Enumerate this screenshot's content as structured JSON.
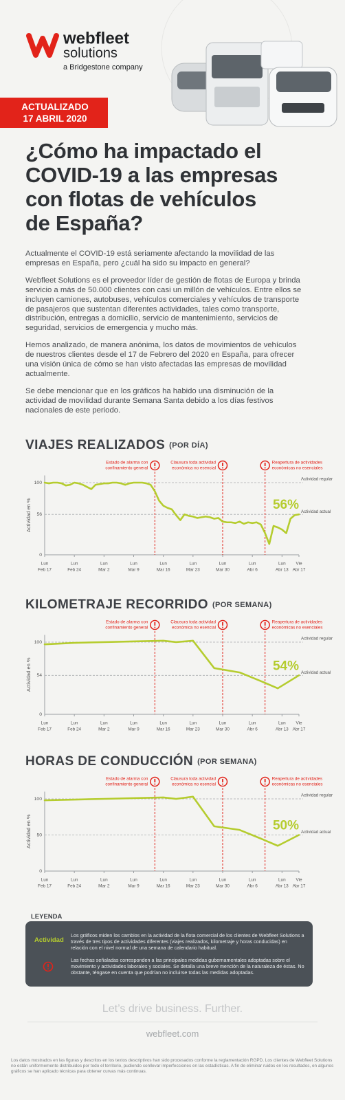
{
  "header": {
    "brand": "webfleet",
    "brand_sub": "solutions",
    "tagline": "a Bridgestone company",
    "badge": [
      "ACTUALIZADO",
      "17 ABRIL 2020"
    ],
    "title": [
      "¿Cómo ha impactado el",
      "COVID-19 a las empresas",
      "con flotas de vehículos",
      "de España?"
    ]
  },
  "paragraphs": [
    "Actualmente el COVID-19 está seriamente afectando la movilidad de las empresas en España, pero ¿cuál ha sido su impacto en general?",
    "Webfleet Solutions es el proveedor líder de gestión de flotas de Europa y brinda servicio a más de 50.000 clientes con casi un millón de vehículos. Entre ellos se incluyen camiones, autobuses, vehículos comerciales y vehículos de transporte de pasajeros que sustentan diferentes actividades, tales como transporte, distribución, entregas a domicilio, servicio de mantenimiento, servicios de seguridad, servicios de emergencia y mucho más.",
    "Hemos analizado, de manera anónima, los datos de movimientos de vehículos de nuestros clientes desde el 17 de Febrero del 2020 en España, para ofrecer una visión única de cómo se han visto afectadas las empresas de movilidad actualmente.",
    "Se debe mencionar que en los gráficos ha habido una disminución de la actividad de movilidad durante Semana Santa debido a los días festivos nacionales de este periodo."
  ],
  "chart_data": [
    {
      "type": "line",
      "title": "VIAJES REALIZADOS",
      "subtitle": "(POR DÍA)",
      "y_label": "Actividad en %",
      "reference_label": "Actividad regular",
      "xlim": [
        0,
        60
      ],
      "ylim": [
        0,
        110
      ],
      "yticks": [
        0,
        56,
        100
      ],
      "xticks": [
        {
          "value": 0,
          "label": "Feb 17",
          "day": "Lun"
        },
        {
          "value": 7,
          "label": "Feb 24",
          "day": "Lun"
        },
        {
          "value": 14,
          "label": "Mar 2",
          "day": "Lun"
        },
        {
          "value": 21,
          "label": "Mar 9",
          "day": "Lun"
        },
        {
          "value": 28,
          "label": "Mar 16",
          "day": "Lun"
        },
        {
          "value": 35,
          "label": "Mar 23",
          "day": "Lun"
        },
        {
          "value": 42,
          "label": "Mar 30",
          "day": "Lun"
        },
        {
          "value": 49,
          "label": "Abr 6",
          "day": "Lun"
        },
        {
          "value": 56,
          "label": "Abr 13",
          "day": "Lun"
        },
        {
          "value": 60,
          "label": "Abr 17",
          "day": "Vie"
        }
      ],
      "events": [
        {
          "x": 26,
          "label": [
            "Estado de alarma con",
            "confinamiento general"
          ]
        },
        {
          "x": 42,
          "label": [
            "Clausura toda actividad",
            "económica no esencial"
          ]
        },
        {
          "x": 52,
          "label": [
            "Reapertura de actividades",
            "económicas no esenciales"
          ]
        }
      ],
      "x": [
        0,
        1,
        2,
        3,
        4,
        5,
        6,
        7,
        8,
        9,
        10,
        11,
        12,
        13,
        14,
        15,
        16,
        17,
        18,
        19,
        20,
        21,
        22,
        23,
        24,
        25,
        26,
        27,
        28,
        29,
        30,
        31,
        32,
        33,
        34,
        35,
        36,
        37,
        38,
        39,
        40,
        41,
        42,
        43,
        44,
        45,
        46,
        47,
        48,
        49,
        50,
        51,
        52,
        53,
        54,
        55,
        56,
        57,
        58,
        59,
        60
      ],
      "series": [
        {
          "name": "Actividad actual",
          "color": "#b5cc2e",
          "values": [
            100,
            99,
            100,
            100,
            99,
            96,
            97,
            100,
            99,
            97,
            94,
            91,
            97,
            98,
            99,
            99,
            100,
            100,
            99,
            97,
            99,
            100,
            100,
            100,
            99,
            97,
            88,
            75,
            68,
            65,
            63,
            55,
            48,
            56,
            54,
            53,
            51,
            52,
            53,
            52,
            50,
            51,
            46,
            45,
            45,
            44,
            46,
            43,
            45,
            44,
            45,
            42,
            30,
            15,
            40,
            38,
            35,
            30,
            50,
            55,
            56
          ],
          "value_labels": [
            null,
            null,
            null,
            null,
            null,
            null,
            null,
            null,
            null,
            null,
            null,
            null,
            null,
            null,
            null,
            null,
            null,
            null,
            null,
            null,
            null,
            null,
            null,
            null,
            null,
            null,
            null,
            null,
            null,
            null,
            null,
            null,
            null,
            null,
            null,
            null,
            null,
            null,
            null,
            null,
            null,
            null,
            null,
            null,
            null,
            null,
            null,
            null,
            null,
            null,
            null,
            null,
            null,
            null,
            null,
            null,
            null,
            null,
            null,
            null,
            "56%"
          ]
        }
      ]
    },
    {
      "type": "line",
      "title": "KILOMETRAJE RECORRIDO",
      "subtitle": "(POR SEMANA)",
      "y_label": "Actividad en %",
      "reference_label": "Actividad regular",
      "xlim": [
        0,
        60
      ],
      "ylim": [
        0,
        110
      ],
      "yticks": [
        0,
        54,
        100
      ],
      "xticks": [
        {
          "value": 0,
          "label": "Feb 17",
          "day": "Lun"
        },
        {
          "value": 7,
          "label": "Feb 24",
          "day": "Lun"
        },
        {
          "value": 14,
          "label": "Mar 2",
          "day": "Lun"
        },
        {
          "value": 21,
          "label": "Mar 9",
          "day": "Lun"
        },
        {
          "value": 28,
          "label": "Mar 16",
          "day": "Lun"
        },
        {
          "value": 35,
          "label": "Mar 23",
          "day": "Lun"
        },
        {
          "value": 42,
          "label": "Mar 30",
          "day": "Lun"
        },
        {
          "value": 49,
          "label": "Abr 6",
          "day": "Lun"
        },
        {
          "value": 56,
          "label": "Abr 13",
          "day": "Lun"
        },
        {
          "value": 60,
          "label": "Abr 17",
          "day": "Vie"
        }
      ],
      "events": [
        {
          "x": 26,
          "label": [
            "Estado de alarma con",
            "confinamiento general"
          ]
        },
        {
          "x": 42,
          "label": [
            "Clausura toda actividad",
            "económica no esencial"
          ]
        },
        {
          "x": 52,
          "label": [
            "Reapertura de actividades",
            "económicas no esenciales"
          ]
        }
      ],
      "x": [
        0,
        7,
        14,
        21,
        28,
        31,
        35,
        40,
        46,
        51,
        55,
        60
      ],
      "series": [
        {
          "name": "Actividad actual",
          "color": "#b5cc2e",
          "values": [
            97,
            99,
            100,
            101,
            102,
            100,
            102,
            64,
            58,
            46,
            36,
            54
          ],
          "value_labels": [
            null,
            null,
            null,
            null,
            null,
            null,
            null,
            null,
            null,
            null,
            null,
            "54%"
          ]
        }
      ]
    },
    {
      "type": "line",
      "title": "HORAS DE CONDUCCIÓN",
      "subtitle": "(POR SEMANA)",
      "y_label": "Actividad en %",
      "reference_label": "Actividad regular",
      "xlim": [
        0,
        60
      ],
      "ylim": [
        0,
        110
      ],
      "yticks": [
        0,
        50,
        100
      ],
      "xticks": [
        {
          "value": 0,
          "label": "Feb 17",
          "day": "Lun"
        },
        {
          "value": 7,
          "label": "Feb 24",
          "day": "Lun"
        },
        {
          "value": 14,
          "label": "Mar 2",
          "day": "Lun"
        },
        {
          "value": 21,
          "label": "Mar 9",
          "day": "Lun"
        },
        {
          "value": 28,
          "label": "Mar 16",
          "day": "Lun"
        },
        {
          "value": 35,
          "label": "Mar 23",
          "day": "Lun"
        },
        {
          "value": 42,
          "label": "Mar 30",
          "day": "Lun"
        },
        {
          "value": 49,
          "label": "Abr 6",
          "day": "Lun"
        },
        {
          "value": 56,
          "label": "Abr 13",
          "day": "Lun"
        },
        {
          "value": 60,
          "label": "Abr 17",
          "day": "Vie"
        }
      ],
      "events": [
        {
          "x": 26,
          "label": [
            "Estado de alarma con",
            "confinamiento general"
          ]
        },
        {
          "x": 42,
          "label": [
            "Clausura toda actividad",
            "económica no esencial"
          ]
        },
        {
          "x": 52,
          "label": [
            "Reapertura de actividades",
            "económicas no esenciales"
          ]
        }
      ],
      "x": [
        0,
        7,
        14,
        21,
        28,
        31,
        35,
        40,
        46,
        51,
        55,
        60
      ],
      "series": [
        {
          "name": "Actividad actual",
          "color": "#b5cc2e",
          "values": [
            98,
            99,
            100,
            101,
            102,
            100,
            103,
            62,
            57,
            45,
            35,
            50
          ],
          "value_labels": [
            null,
            null,
            null,
            null,
            null,
            null,
            null,
            null,
            null,
            null,
            null,
            "50%"
          ]
        }
      ]
    }
  ],
  "legend": {
    "title": "LEYENDA",
    "activity_label": "Actividad",
    "activity_text": "Los gráficos miden los cambios en la actividad de la flota comercial de los clientes de Webfleet Solutions a través de tres tipos de actividades diferentes (viajes realizados, kilometraje y horas conducidas) en relación con el nivel normal de una semana de calendario habitual.",
    "events_text": "Las fechas señaladas corresponden a las principales medidas gubernamentales adoptadas sobre el movimiento y actividades laborales y sociales. Se detalla una breve mención de la naturaleza de éstas. No obstante, téngase en cuenta que podrían no incluirse todas las medidas adoptadas."
  },
  "footer": {
    "slogan": "Let’s drive business. Further.",
    "url": "webfleet.com",
    "disclaimer": "Los datos mostrados en las figuras y descritos en los textos descriptivos han sido procesados conforme la reglamentación RGPD. Los clientes de Webfleet Solutions no están uniformemente distribuidos por todo el territorio, pudiendo conllevar imperfecciones en las estadísticas. A fin de eliminar ruidos en los resultados, en algunos gráficos se han aplicado técnicas para obtener curvas más continuas."
  }
}
